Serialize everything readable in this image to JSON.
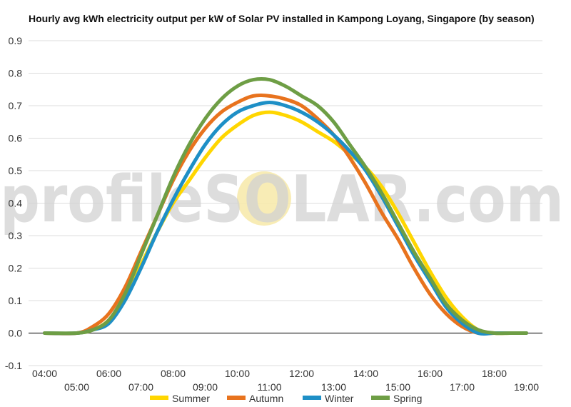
{
  "chart_data": {
    "type": "line",
    "title": "Hourly avg kWh electricity output per kW of Solar PV installed in Kampong Loyang, Singapore (by season)",
    "xlabel": "",
    "ylabel": "",
    "ylim": [
      -0.1,
      0.9
    ],
    "yticks": [
      "0.9",
      "0.8",
      "0.7",
      "0.6",
      "0.5",
      "0.4",
      "0.3",
      "0.2",
      "0.1",
      "0.0",
      "-0.1"
    ],
    "ytick_values": [
      0.9,
      0.8,
      0.7,
      0.6,
      0.5,
      0.4,
      0.3,
      0.2,
      0.1,
      0.0,
      -0.1
    ],
    "x_hours": [
      4,
      5,
      6,
      7,
      8,
      9,
      10,
      11,
      12,
      13,
      14,
      15,
      16,
      17,
      18,
      19
    ],
    "x_tick_labels": [
      "04:00",
      "05:00",
      "06:00",
      "07:00",
      "08:00",
      "09:00",
      "10:00",
      "11:00",
      "12:00",
      "13:00",
      "14:00",
      "15:00",
      "16:00",
      "17:00",
      "18:00",
      "19:00"
    ],
    "grid": true,
    "legend_position": "bottom",
    "series": [
      {
        "name": "Summer",
        "color": "#FFD600",
        "x": [
          4.0,
          5.0,
          5.5,
          6.0,
          6.5,
          7.0,
          7.5,
          8.0,
          8.5,
          9.0,
          9.5,
          10.0,
          10.5,
          11.0,
          11.5,
          12.0,
          12.5,
          13.0,
          13.5,
          14.0,
          14.5,
          15.0,
          15.5,
          16.0,
          16.5,
          17.0,
          17.5,
          18.0,
          18.5,
          19.0
        ],
        "values": [
          0.0,
          0.0,
          0.01,
          0.04,
          0.11,
          0.21,
          0.31,
          0.4,
          0.47,
          0.54,
          0.6,
          0.64,
          0.67,
          0.68,
          0.67,
          0.65,
          0.62,
          0.59,
          0.55,
          0.51,
          0.45,
          0.37,
          0.28,
          0.19,
          0.11,
          0.05,
          0.01,
          0.0,
          0.0,
          0.0
        ]
      },
      {
        "name": "Autumn",
        "color": "#E8731E",
        "x": [
          4.0,
          5.0,
          5.5,
          6.0,
          6.5,
          7.0,
          7.5,
          8.0,
          8.5,
          9.0,
          9.5,
          10.0,
          10.5,
          11.0,
          11.5,
          12.0,
          12.5,
          13.0,
          13.5,
          14.0,
          14.5,
          15.0,
          15.5,
          16.0,
          16.5,
          17.0,
          17.5,
          18.0,
          18.5,
          19.0
        ],
        "values": [
          0.0,
          0.0,
          0.02,
          0.06,
          0.14,
          0.25,
          0.36,
          0.47,
          0.56,
          0.63,
          0.68,
          0.71,
          0.73,
          0.73,
          0.72,
          0.7,
          0.66,
          0.61,
          0.54,
          0.46,
          0.37,
          0.29,
          0.2,
          0.12,
          0.06,
          0.02,
          0.0,
          0.0,
          0.0,
          0.0
        ]
      },
      {
        "name": "Winter",
        "color": "#1E8FC6",
        "x": [
          4.0,
          5.0,
          5.5,
          6.0,
          6.5,
          7.0,
          7.5,
          8.0,
          8.5,
          9.0,
          9.5,
          10.0,
          10.5,
          11.0,
          11.5,
          12.0,
          12.5,
          13.0,
          13.5,
          14.0,
          14.5,
          15.0,
          15.5,
          16.0,
          16.5,
          17.0,
          17.5,
          18.0,
          18.5,
          19.0
        ],
        "values": [
          0.0,
          0.0,
          0.01,
          0.03,
          0.1,
          0.2,
          0.31,
          0.41,
          0.5,
          0.58,
          0.64,
          0.68,
          0.7,
          0.71,
          0.7,
          0.68,
          0.65,
          0.61,
          0.56,
          0.5,
          0.42,
          0.33,
          0.24,
          0.16,
          0.08,
          0.03,
          0.0,
          0.0,
          0.0,
          0.0
        ]
      },
      {
        "name": "Spring",
        "color": "#6E9E45",
        "x": [
          4.0,
          5.0,
          5.5,
          6.0,
          6.5,
          7.0,
          7.5,
          8.0,
          8.5,
          9.0,
          9.5,
          10.0,
          10.5,
          11.0,
          11.5,
          12.0,
          12.5,
          13.0,
          13.5,
          14.0,
          14.5,
          15.0,
          15.5,
          16.0,
          16.5,
          17.0,
          17.5,
          18.0,
          18.5,
          19.0
        ],
        "values": [
          0.0,
          0.0,
          0.01,
          0.04,
          0.12,
          0.24,
          0.36,
          0.48,
          0.58,
          0.66,
          0.72,
          0.76,
          0.78,
          0.78,
          0.76,
          0.73,
          0.7,
          0.65,
          0.58,
          0.51,
          0.43,
          0.34,
          0.25,
          0.17,
          0.09,
          0.04,
          0.01,
          0.0,
          0.0,
          0.0
        ]
      }
    ]
  },
  "watermark": {
    "text": "profileSOLAR.com"
  }
}
